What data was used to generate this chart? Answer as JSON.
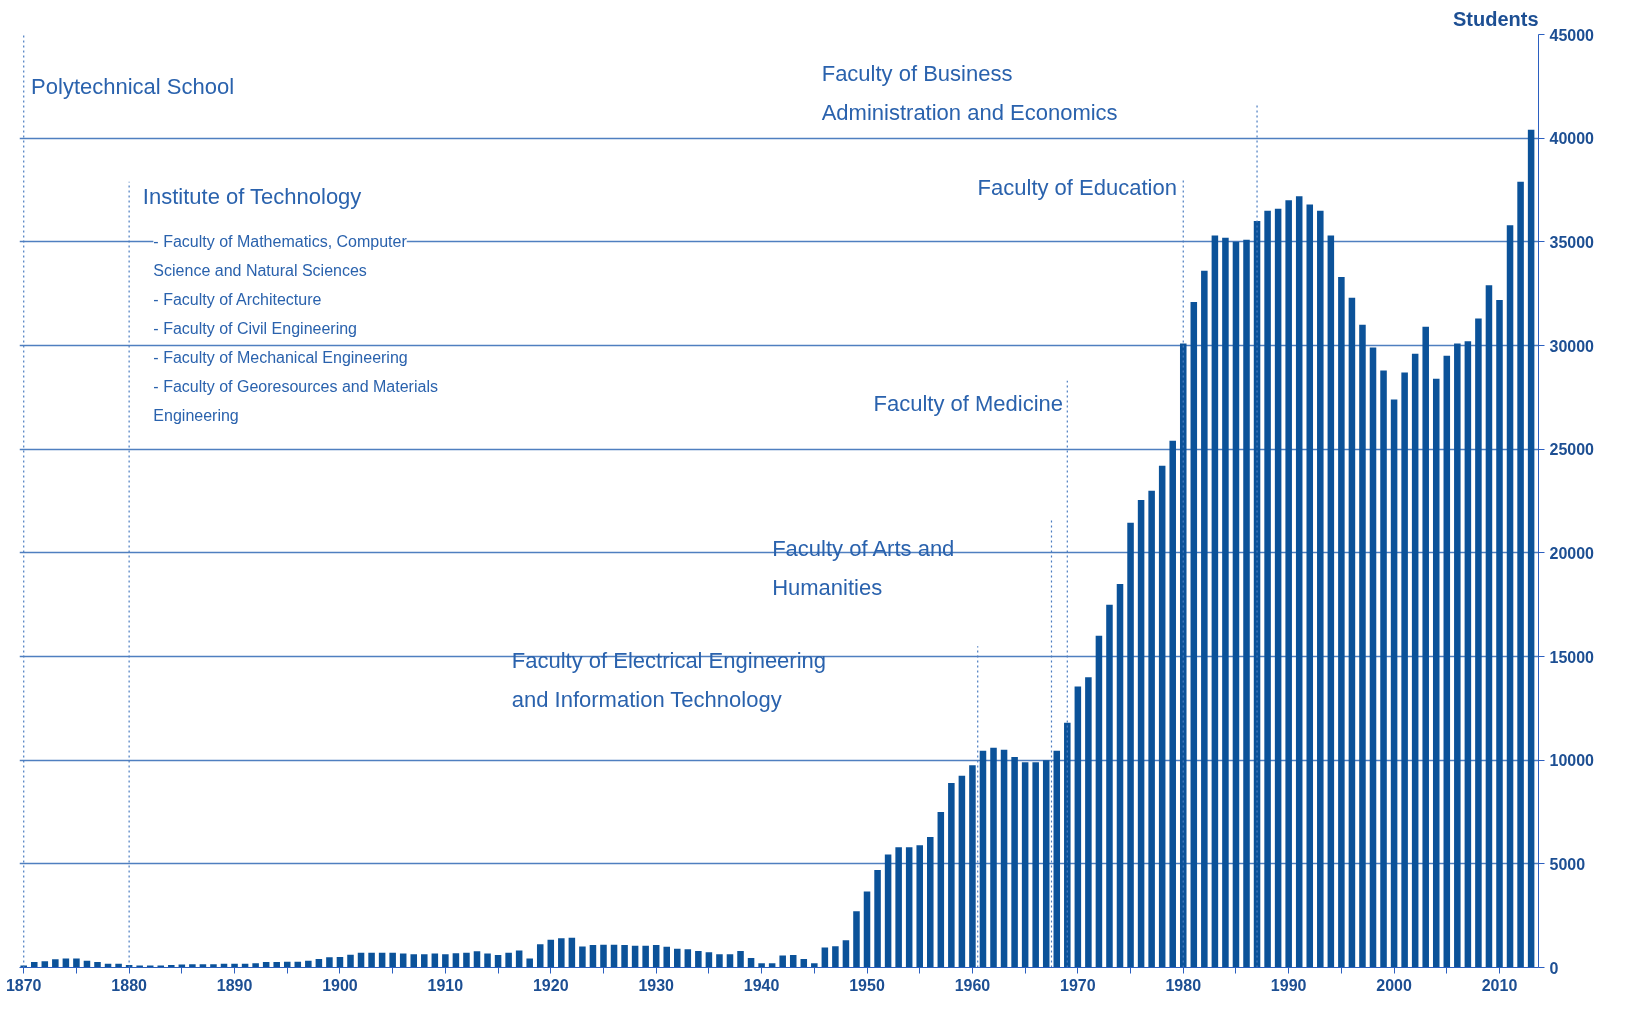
{
  "chart_data": {
    "type": "bar",
    "ylabel": "Students",
    "color": "#0b5299",
    "x": [
      1870,
      1871,
      1872,
      1873,
      1874,
      1875,
      1876,
      1877,
      1878,
      1879,
      1880,
      1881,
      1882,
      1883,
      1884,
      1885,
      1886,
      1887,
      1888,
      1889,
      1890,
      1891,
      1892,
      1893,
      1894,
      1895,
      1896,
      1897,
      1898,
      1899,
      1900,
      1901,
      1902,
      1903,
      1904,
      1905,
      1906,
      1907,
      1908,
      1909,
      1910,
      1911,
      1912,
      1913,
      1914,
      1915,
      1916,
      1917,
      1918,
      1919,
      1920,
      1921,
      1922,
      1923,
      1924,
      1925,
      1926,
      1927,
      1928,
      1929,
      1930,
      1931,
      1932,
      1933,
      1934,
      1935,
      1936,
      1937,
      1938,
      1939,
      1940,
      1941,
      1942,
      1943,
      1944,
      1945,
      1946,
      1947,
      1948,
      1949,
      1950,
      1951,
      1952,
      1953,
      1954,
      1955,
      1956,
      1957,
      1958,
      1959,
      1960,
      1961,
      1962,
      1963,
      1964,
      1965,
      1966,
      1967,
      1968,
      1969,
      1970,
      1971,
      1972,
      1973,
      1974,
      1975,
      1976,
      1977,
      1978,
      1979,
      1980,
      1981,
      1982,
      1983,
      1984,
      1985,
      1986,
      1987,
      1988,
      1989,
      1990,
      1991,
      1992,
      1993,
      1994,
      1995,
      1996,
      1997,
      1998,
      1999,
      2000,
      2001,
      2002,
      2003,
      2004,
      2005,
      2006,
      2007,
      2008,
      2009,
      2010,
      2011,
      2012,
      2013
    ],
    "values": [
      100,
      270,
      300,
      400,
      430,
      430,
      320,
      270,
      180,
      180,
      120,
      100,
      100,
      100,
      120,
      140,
      160,
      160,
      160,
      180,
      180,
      180,
      200,
      270,
      270,
      280,
      280,
      320,
      410,
      500,
      510,
      620,
      710,
      710,
      710,
      710,
      670,
      640,
      640,
      670,
      640,
      690,
      710,
      780,
      670,
      600,
      710,
      820,
      430,
      1120,
      1340,
      1410,
      1440,
      1010,
      1080,
      1100,
      1100,
      1080,
      1050,
      1050,
      1080,
      1000,
      910,
      880,
      790,
      740,
      640,
      640,
      790,
      460,
      210,
      210,
      580,
      600,
      410,
      210,
      960,
      1030,
      1310,
      2710,
      3660,
      4700,
      5450,
      5800,
      5800,
      5900,
      6300,
      7500,
      8900,
      9250,
      9750,
      10450,
      10600,
      10500,
      10150,
      9900,
      9900,
      10000,
      10450,
      11800,
      13550,
      14000,
      16000,
      17500,
      18500,
      21450,
      22550,
      23000,
      24200,
      25400,
      30100,
      32100,
      33600,
      35300,
      35200,
      35000,
      35100,
      36000,
      36500,
      36600,
      37000,
      37200,
      36800,
      36500,
      35300,
      33300,
      32300,
      31000,
      29900,
      28800,
      27400,
      28700,
      29600,
      30900,
      28400,
      29500,
      30100,
      30200,
      31300,
      32900,
      32200,
      35800,
      37900,
      40400
    ],
    "xlim": [
      1869.6,
      2013.7
    ],
    "xticks": [
      1870,
      {
        "value": 1875,
        "label": null
      },
      1880,
      {
        "value": 1885,
        "label": null
      },
      1890,
      {
        "value": 1895,
        "label": null
      },
      1900,
      {
        "value": 1905,
        "label": null
      },
      1910,
      {
        "value": 1915,
        "label": null
      },
      1920,
      {
        "value": 1925,
        "label": null
      },
      1930,
      {
        "value": 1935,
        "label": null
      },
      1940,
      {
        "value": 1945,
        "label": null
      },
      1950,
      {
        "value": 1955,
        "label": null
      },
      1960,
      {
        "value": 1965,
        "label": null
      },
      1970,
      {
        "value": 1975,
        "label": null
      },
      1980,
      {
        "value": 1985,
        "label": null
      },
      1990,
      {
        "value": 1995,
        "label": null
      },
      2000,
      {
        "value": 2005,
        "label": null
      },
      2010
    ],
    "ylim": [
      0,
      45000
    ],
    "yticks": [
      0,
      5000,
      10000,
      15000,
      20000,
      25000,
      30000,
      35000,
      40000,
      45000
    ],
    "grid": "y",
    "ref_lines": [
      {
        "axis": "x",
        "value": 1870,
        "label": "Polytechnical School",
        "line_style": "dotted"
      },
      {
        "axis": "x",
        "value": 1880,
        "label": "Institute of Technology",
        "line_style": "dotted"
      },
      {
        "axis": "x",
        "value": 1960.5,
        "label": "Faculty of Electrical Engineering\nand Information Technology",
        "line_style": "dotted"
      },
      {
        "axis": "x",
        "value": 1967.5,
        "label": "Faculty of Arts and\nHumanities",
        "line_style": "dotted"
      },
      {
        "axis": "x",
        "value": 1969,
        "label": "Faculty of Medicine",
        "line_style": "dotted"
      },
      {
        "axis": "x",
        "value": 1980,
        "label": "Faculty of Education",
        "line_style": "dotted"
      },
      {
        "axis": "x",
        "value": 1987,
        "label": "Faculty of Business\nAdministration and Economics",
        "line_style": "dotted"
      }
    ],
    "annotations": [
      "- Faculty of Mathematics, Computer\n  Science and Natural Sciences",
      "- Faculty of Architecture",
      "- Faculty of Civil Engineering",
      "- Faculty of Mechanical Engineering",
      "- Faculty of Georesources and Materials\n  Engineering"
    ]
  }
}
